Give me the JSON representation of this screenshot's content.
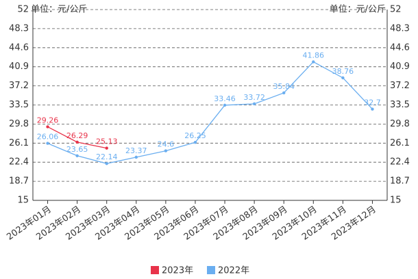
{
  "chart_data": {
    "type": "line",
    "y_label": "单位：元/公斤",
    "categories": [
      "2023年01月",
      "2023年02月",
      "2023年03月",
      "2023年04月",
      "2023年05月",
      "2023年06月",
      "2023年07月",
      "2023年08月",
      "2023年09月",
      "2023年10月",
      "2023年11月",
      "2023年12月"
    ],
    "series": [
      {
        "name": "2023年",
        "color": "#e8334a",
        "values": [
          29.26,
          26.29,
          25.13,
          null,
          null,
          null,
          null,
          null,
          null,
          null,
          null,
          null
        ]
      },
      {
        "name": "2022年",
        "color": "#6aaef0",
        "values": [
          26.06,
          23.65,
          22.14,
          23.37,
          24.6,
          26.25,
          33.46,
          33.72,
          35.84,
          41.86,
          38.76,
          32.7
        ]
      }
    ],
    "ylim": [
      15,
      52
    ],
    "yticks": [
      15,
      18.7,
      22.4,
      26.1,
      29.8,
      33.5,
      37.2,
      40.9,
      44.6,
      48.3,
      52
    ],
    "grid": true,
    "legend": "bottom"
  }
}
